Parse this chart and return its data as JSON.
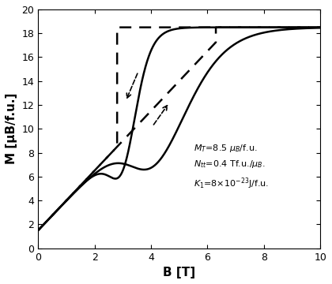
{
  "xlim": [
    0,
    10
  ],
  "ylim": [
    0,
    20
  ],
  "xlabel": "B [T]",
  "ylabel": "M [μB/f.u.]",
  "xticks": [
    0,
    2,
    4,
    6,
    8,
    10
  ],
  "yticks": [
    0,
    2,
    4,
    6,
    8,
    10,
    12,
    14,
    16,
    18,
    20
  ],
  "M_sat": 18.5,
  "ann_x": 5.5,
  "ann_y": 8.8,
  "bg_color": "#ffffff",
  "line_color": "#000000",
  "B_jump_up": 2.8,
  "B_jump_down": 6.3,
  "M_linear_start": 1.5,
  "linear_slope": 2.5
}
